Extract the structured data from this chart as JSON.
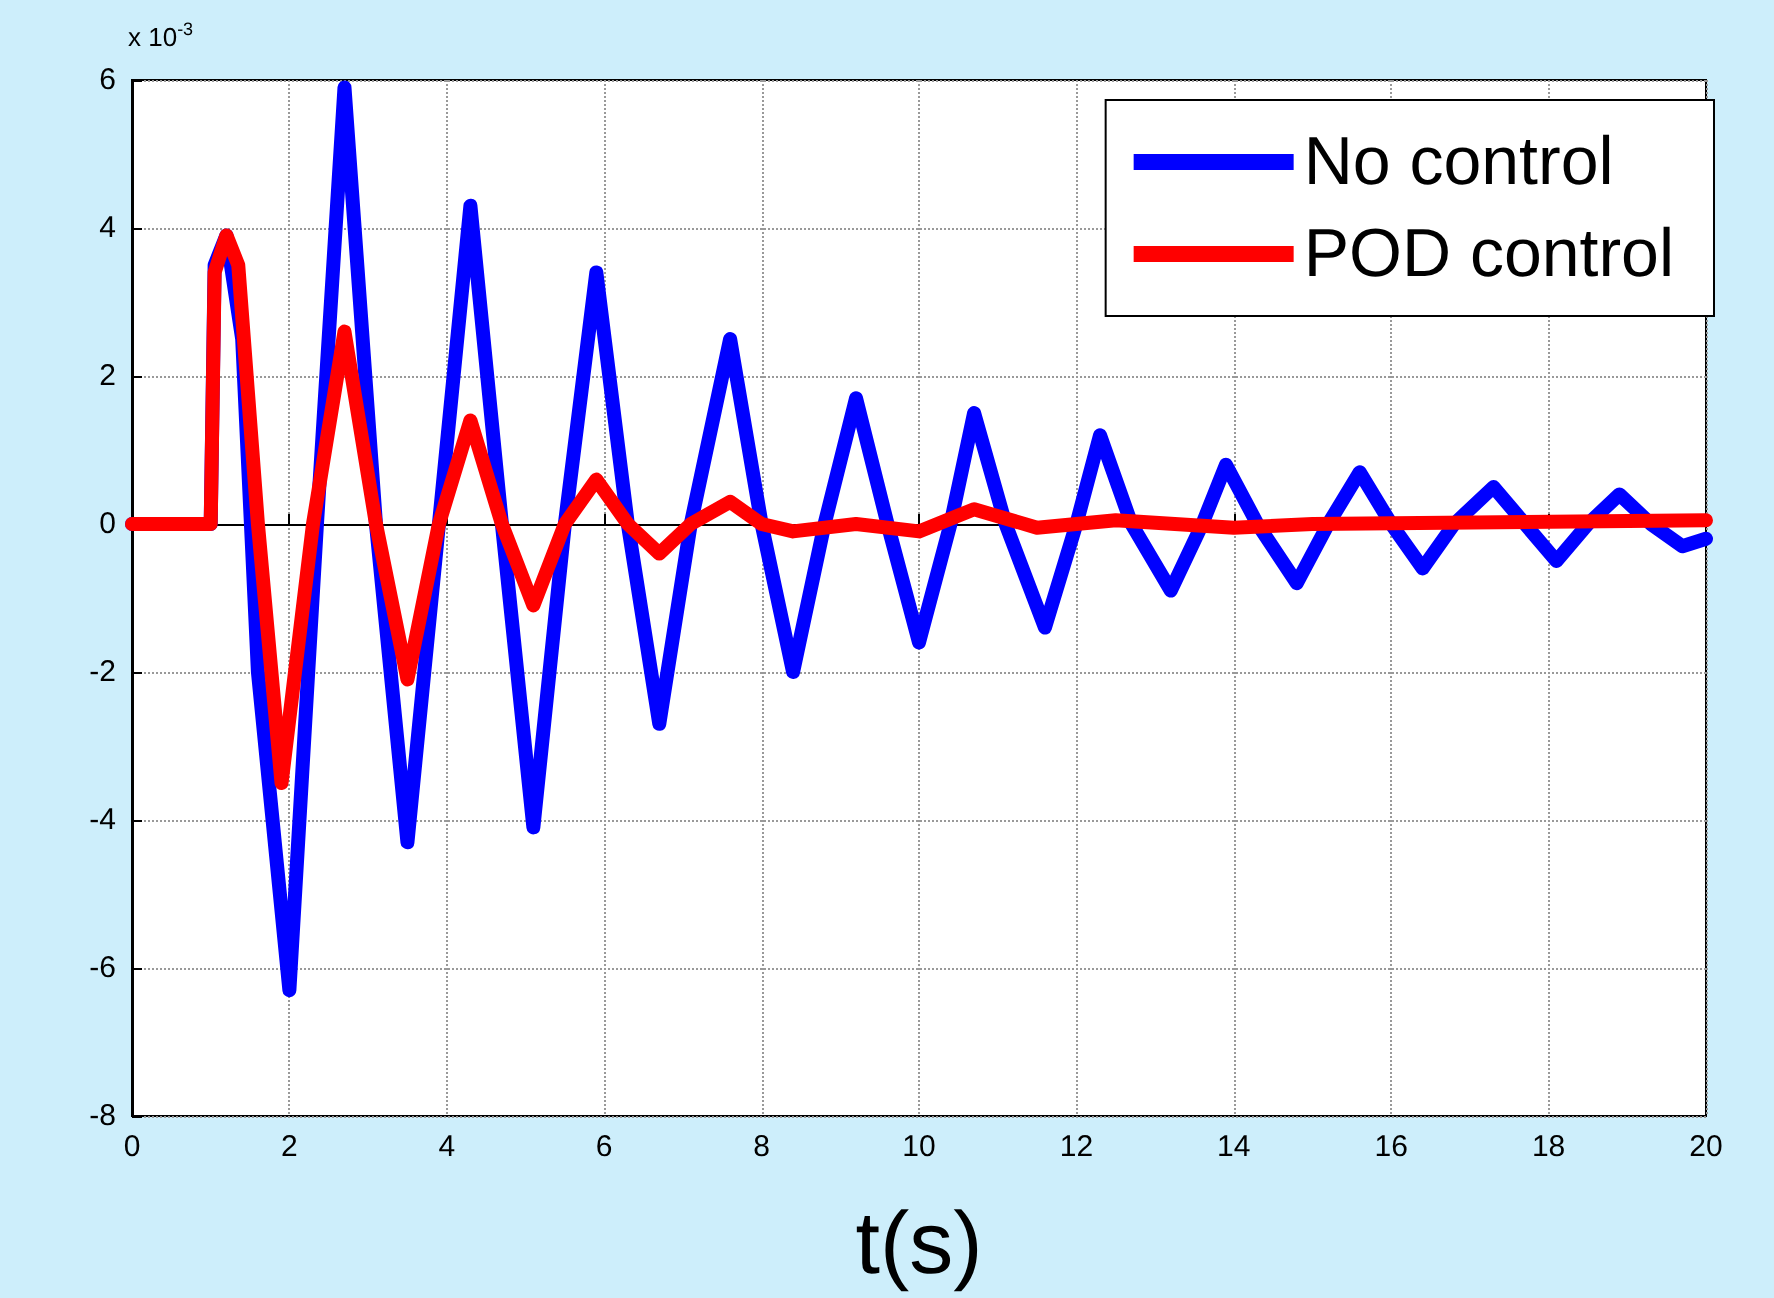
{
  "chart_data": {
    "type": "line",
    "xlabel": "t(s)",
    "annotations": [
      "x 10$^{-3}$"
    ],
    "xlim": [
      0,
      20
    ],
    "xticks": [
      0,
      2,
      4,
      6,
      8,
      10,
      12,
      14,
      16,
      18,
      20
    ],
    "ylim": [
      -8,
      6
    ],
    "yticks": [
      -8,
      -6,
      -4,
      -2,
      0,
      2,
      4,
      6
    ],
    "grid": true,
    "legend": "top right",
    "marker": "none",
    "line_style": "solid",
    "series": [
      {
        "name": "No control",
        "color": "#0000ff",
        "x": [
          0,
          1,
          1.05,
          1.2,
          1.4,
          1.6,
          2.0,
          2.35,
          2.7,
          3.1,
          3.5,
          3.9,
          4.3,
          4.7,
          5.1,
          5.5,
          5.9,
          6.3,
          6.7,
          7.1,
          7.6,
          8.0,
          8.4,
          8.8,
          9.2,
          9.6,
          10.0,
          10.4,
          10.7,
          11.1,
          11.6,
          12.0,
          12.3,
          12.7,
          13.2,
          13.6,
          13.9,
          14.3,
          14.8,
          15.2,
          15.6,
          16.0,
          16.4,
          16.8,
          17.3,
          17.7,
          18.1,
          18.5,
          18.9,
          19.3,
          19.7,
          20
        ],
        "values": [
          0,
          0,
          3.5,
          3.9,
          2.5,
          -2.0,
          -6.3,
          0,
          5.9,
          0,
          -4.3,
          0,
          4.3,
          0,
          -4.1,
          0,
          3.4,
          0,
          -2.7,
          0,
          2.5,
          0,
          -2.0,
          0,
          1.7,
          0,
          -1.6,
          0,
          1.5,
          0,
          -1.4,
          0,
          1.2,
          0,
          -0.9,
          0,
          0.8,
          0,
          -0.8,
          0,
          0.7,
          0,
          -0.6,
          0,
          0.5,
          0,
          -0.5,
          0,
          0.4,
          0,
          -0.3,
          -0.2
        ]
      },
      {
        "name": "POD control",
        "color": "#ff0000",
        "x": [
          0,
          1,
          1.05,
          1.2,
          1.35,
          1.6,
          1.9,
          2.3,
          2.7,
          3.1,
          3.5,
          3.9,
          4.3,
          4.7,
          5.1,
          5.5,
          5.9,
          6.3,
          6.7,
          7.1,
          7.6,
          8.0,
          8.4,
          9.2,
          10.0,
          10.7,
          11.5,
          12.5,
          14.0,
          15.0,
          20
        ],
        "values": [
          0,
          0,
          3.4,
          3.9,
          3.5,
          0,
          -3.5,
          0,
          2.6,
          0,
          -2.1,
          0,
          1.4,
          0,
          -1.1,
          0,
          0.6,
          0,
          -0.4,
          0,
          0.3,
          0,
          -0.1,
          0,
          -0.1,
          0.2,
          -0.05,
          0.05,
          -0.05,
          0,
          0.05
        ]
      }
    ]
  }
}
